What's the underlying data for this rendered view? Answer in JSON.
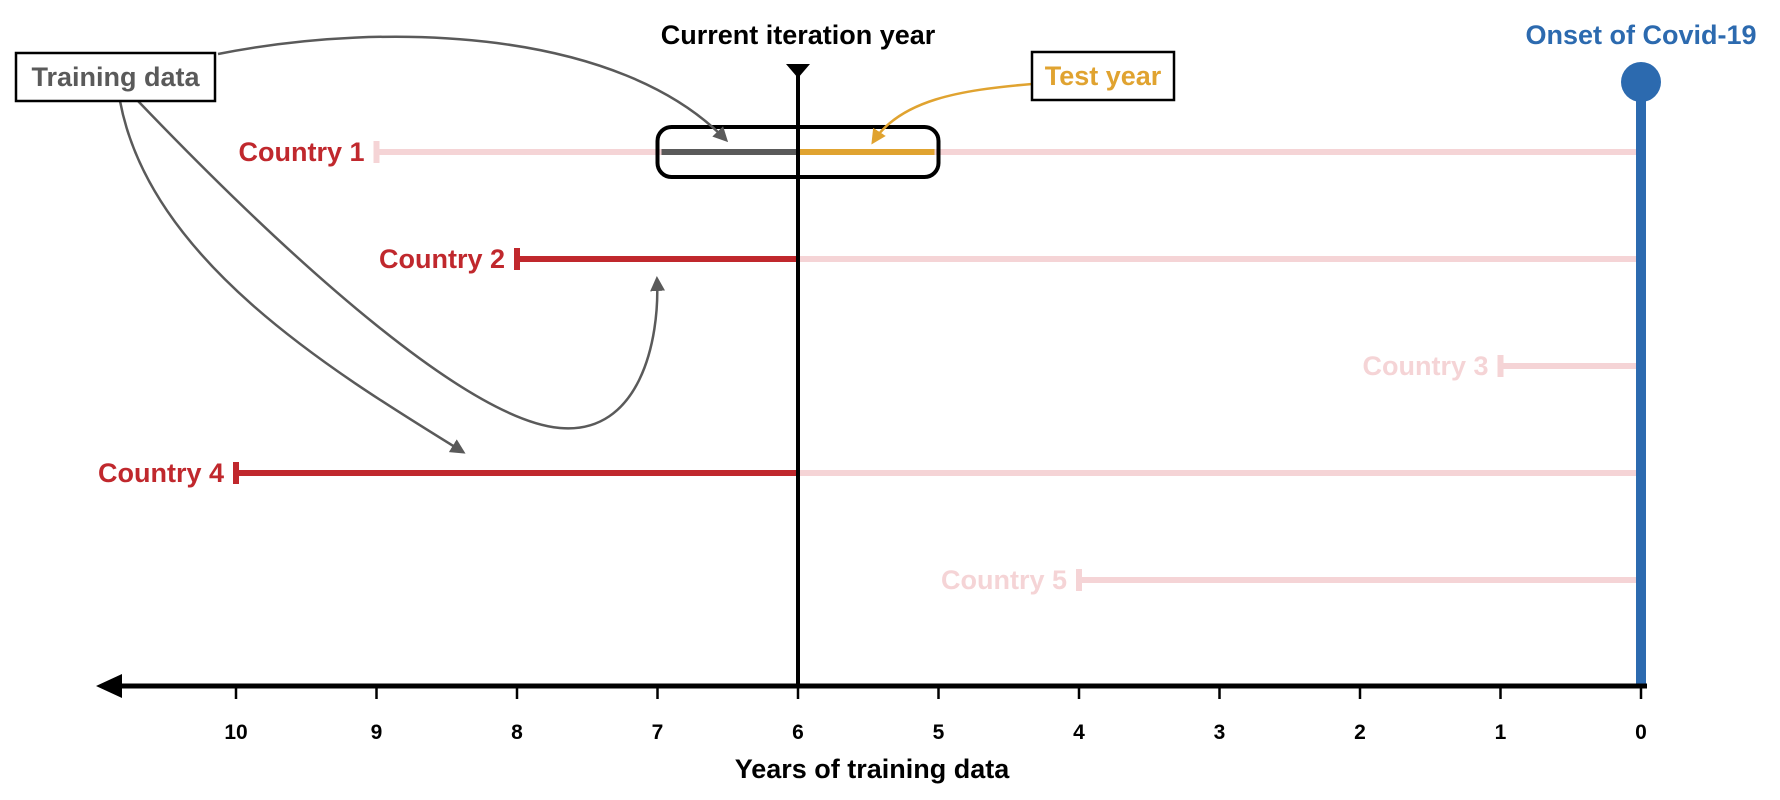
{
  "colors": {
    "active": "#c0282d",
    "inactive": "#f5d4d6",
    "training": "#5a5a5a",
    "test": "#e0a330",
    "covid": "#2c6aaf",
    "axis": "#000000"
  },
  "labels": {
    "current_iteration": "Current iteration year",
    "covid_onset": "Onset of Covid-19",
    "training_data": "Training data",
    "test_year": "Test year",
    "x_axis_title": "Years of training data"
  },
  "chart_data": {
    "type": "timeline",
    "xlabel": "Years of training data",
    "x_ticks": [
      10,
      9,
      8,
      7,
      6,
      5,
      4,
      3,
      2,
      1,
      0
    ],
    "xlim": [
      11,
      0
    ],
    "x_reversed": true,
    "current_iteration_year": 6,
    "test_year_range": [
      6,
      5
    ],
    "covid_onset_year": 0,
    "countries": [
      {
        "name": "Country 1",
        "start": 9,
        "active": false,
        "highlight_window": true
      },
      {
        "name": "Country 2",
        "start": 8,
        "active": true
      },
      {
        "name": "Country 3",
        "start": 1,
        "active": false
      },
      {
        "name": "Country 4",
        "start": 10,
        "active": true
      },
      {
        "name": "Country 5",
        "start": 4,
        "active": false
      }
    ]
  }
}
